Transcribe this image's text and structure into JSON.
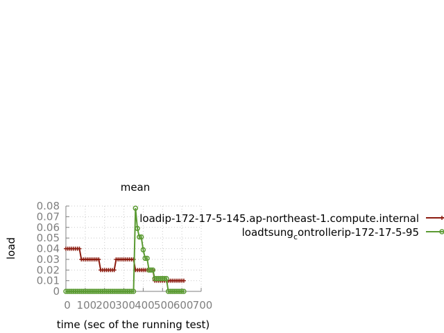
{
  "chart_data": {
    "type": "line",
    "title": "mean",
    "xlabel": "time (sec of the running test)",
    "ylabel": "load",
    "xlim": [
      0,
      700
    ],
    "ylim": [
      0,
      0.08
    ],
    "x_ticks": [
      "0",
      "100",
      "200",
      "300",
      "400",
      "500",
      "600",
      "700"
    ],
    "y_ticks": [
      "0",
      "0.01",
      "0.02",
      "0.03",
      "0.04",
      "0.05",
      "0.06",
      "0.07",
      "0.08"
    ],
    "grid": true,
    "legend_position": "right",
    "series": [
      {
        "name": "loadip-172-17-5-145.ap-northeast-1.compute.internal",
        "legend_parts": {
          "prefix": "load",
          "main": "ip-172-17-5-145.ap-northeast-1.compute.internal"
        },
        "color": "#8b1a0e",
        "marker": "plus",
        "points": [
          [
            0,
            0.04
          ],
          [
            10,
            0.04
          ],
          [
            20,
            0.04
          ],
          [
            30,
            0.04
          ],
          [
            40,
            0.04
          ],
          [
            50,
            0.04
          ],
          [
            60,
            0.04
          ],
          [
            70,
            0.04
          ],
          [
            80,
            0.03
          ],
          [
            90,
            0.03
          ],
          [
            100,
            0.03
          ],
          [
            110,
            0.03
          ],
          [
            120,
            0.03
          ],
          [
            130,
            0.03
          ],
          [
            140,
            0.03
          ],
          [
            150,
            0.03
          ],
          [
            160,
            0.03
          ],
          [
            170,
            0.03
          ],
          [
            180,
            0.02
          ],
          [
            190,
            0.02
          ],
          [
            200,
            0.02
          ],
          [
            210,
            0.02
          ],
          [
            220,
            0.02
          ],
          [
            230,
            0.02
          ],
          [
            240,
            0.02
          ],
          [
            250,
            0.02
          ],
          [
            260,
            0.03
          ],
          [
            270,
            0.03
          ],
          [
            280,
            0.03
          ],
          [
            290,
            0.03
          ],
          [
            300,
            0.03
          ],
          [
            310,
            0.03
          ],
          [
            320,
            0.03
          ],
          [
            330,
            0.03
          ],
          [
            340,
            0.03
          ],
          [
            350,
            0.03
          ],
          [
            360,
            0.02
          ],
          [
            370,
            0.02
          ],
          [
            380,
            0.02
          ],
          [
            390,
            0.02
          ],
          [
            400,
            0.02
          ],
          [
            410,
            0.02
          ],
          [
            420,
            0.02
          ],
          [
            430,
            0.02
          ],
          [
            440,
            0.02
          ],
          [
            450,
            0.02
          ],
          [
            460,
            0.01
          ],
          [
            470,
            0.01
          ],
          [
            480,
            0.01
          ],
          [
            490,
            0.01
          ],
          [
            500,
            0.01
          ],
          [
            510,
            0.01
          ],
          [
            520,
            0.01
          ],
          [
            530,
            0.01
          ],
          [
            540,
            0.01
          ],
          [
            550,
            0.01
          ],
          [
            560,
            0.01
          ],
          [
            570,
            0.01
          ],
          [
            580,
            0.01
          ],
          [
            590,
            0.01
          ],
          [
            600,
            0.01
          ],
          [
            610,
            0.01
          ]
        ]
      },
      {
        "name": "loadtsung_controllerip-172-17-5-95",
        "legend_parts": {
          "prefix": "load",
          "main": "tsung",
          "sub": "c",
          "rest": "ontroller",
          "tail": "ip-172-17-5-95"
        },
        "color": "#5a9a32",
        "marker": "circle",
        "points": [
          [
            0,
            0
          ],
          [
            10,
            0
          ],
          [
            20,
            0
          ],
          [
            30,
            0
          ],
          [
            40,
            0
          ],
          [
            50,
            0
          ],
          [
            60,
            0
          ],
          [
            70,
            0
          ],
          [
            80,
            0
          ],
          [
            90,
            0
          ],
          [
            100,
            0
          ],
          [
            110,
            0
          ],
          [
            120,
            0
          ],
          [
            130,
            0
          ],
          [
            140,
            0
          ],
          [
            150,
            0
          ],
          [
            160,
            0
          ],
          [
            170,
            0
          ],
          [
            180,
            0
          ],
          [
            190,
            0
          ],
          [
            200,
            0
          ],
          [
            210,
            0
          ],
          [
            220,
            0
          ],
          [
            230,
            0
          ],
          [
            240,
            0
          ],
          [
            250,
            0
          ],
          [
            260,
            0
          ],
          [
            270,
            0
          ],
          [
            280,
            0
          ],
          [
            290,
            0
          ],
          [
            300,
            0
          ],
          [
            310,
            0
          ],
          [
            320,
            0
          ],
          [
            330,
            0
          ],
          [
            340,
            0
          ],
          [
            350,
            0
          ],
          [
            360,
            0.078
          ],
          [
            370,
            0.059
          ],
          [
            380,
            0.051
          ],
          [
            390,
            0.051
          ],
          [
            400,
            0.039
          ],
          [
            410,
            0.031
          ],
          [
            420,
            0.031
          ],
          [
            430,
            0.02
          ],
          [
            440,
            0.02
          ],
          [
            450,
            0.02
          ],
          [
            460,
            0.012
          ],
          [
            470,
            0.012
          ],
          [
            480,
            0.012
          ],
          [
            490,
            0.012
          ],
          [
            500,
            0.012
          ],
          [
            510,
            0.012
          ],
          [
            520,
            0.012
          ],
          [
            530,
            0
          ],
          [
            540,
            0
          ],
          [
            550,
            0
          ],
          [
            560,
            0
          ],
          [
            570,
            0
          ],
          [
            580,
            0
          ],
          [
            590,
            0
          ],
          [
            600,
            0
          ],
          [
            610,
            0
          ]
        ]
      }
    ]
  }
}
